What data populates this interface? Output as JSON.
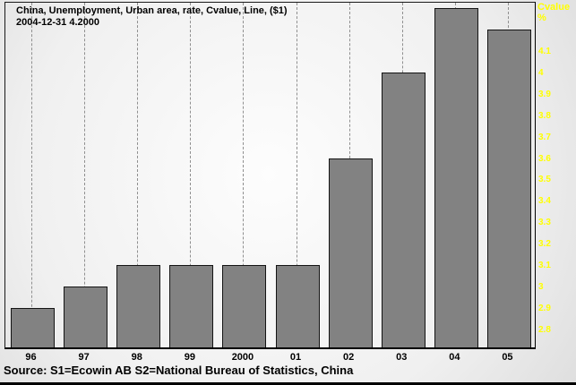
{
  "header": {
    "title_line1": "China, Unemployment, Urban area, rate, Cvalue, Line, ($1)",
    "title_line2": "2004-12-31 4.2000"
  },
  "right_axis": {
    "label": "Cvalue",
    "unit": "%",
    "tick_labels": [
      "4.1",
      "4",
      "3.9",
      "3.8",
      "3.7",
      "3.6",
      "3.5",
      "3.4",
      "3.3",
      "3.2",
      "3.1",
      "3",
      "2.9",
      "2.8"
    ]
  },
  "source_bar": {
    "text": "Source: S1=Ecowin AB S2=National Bureau of Statistics, China"
  },
  "colors": {
    "bar_fill": "#828282",
    "bar_border": "#141414",
    "axis_text": "#ffff00",
    "title_text": "#000000",
    "gridline": "#8f8f8f"
  },
  "chart_data": {
    "type": "bar",
    "title": "China, Unemployment, Urban area, rate, Cvalue, Line, ($1)",
    "subtitle": "2004-12-31 4.2000",
    "categories": [
      "96",
      "97",
      "98",
      "99",
      "2000",
      "01",
      "02",
      "03",
      "04",
      "05"
    ],
    "values": [
      2.9,
      3.0,
      3.1,
      3.1,
      3.1,
      3.1,
      3.6,
      4.0,
      4.3,
      4.2
    ],
    "xlabel": "",
    "ylabel": "Cvalue %",
    "ylim": [
      2.72,
      4.33
    ],
    "yticks": [
      4.1,
      4.0,
      3.9,
      3.8,
      3.7,
      3.6,
      3.5,
      3.4,
      3.3,
      3.2,
      3.1,
      3.0,
      2.9,
      2.8
    ],
    "grid": "vertical-dashed-at-bar-centers",
    "legend_position": "none",
    "value_axis_side": "right"
  }
}
